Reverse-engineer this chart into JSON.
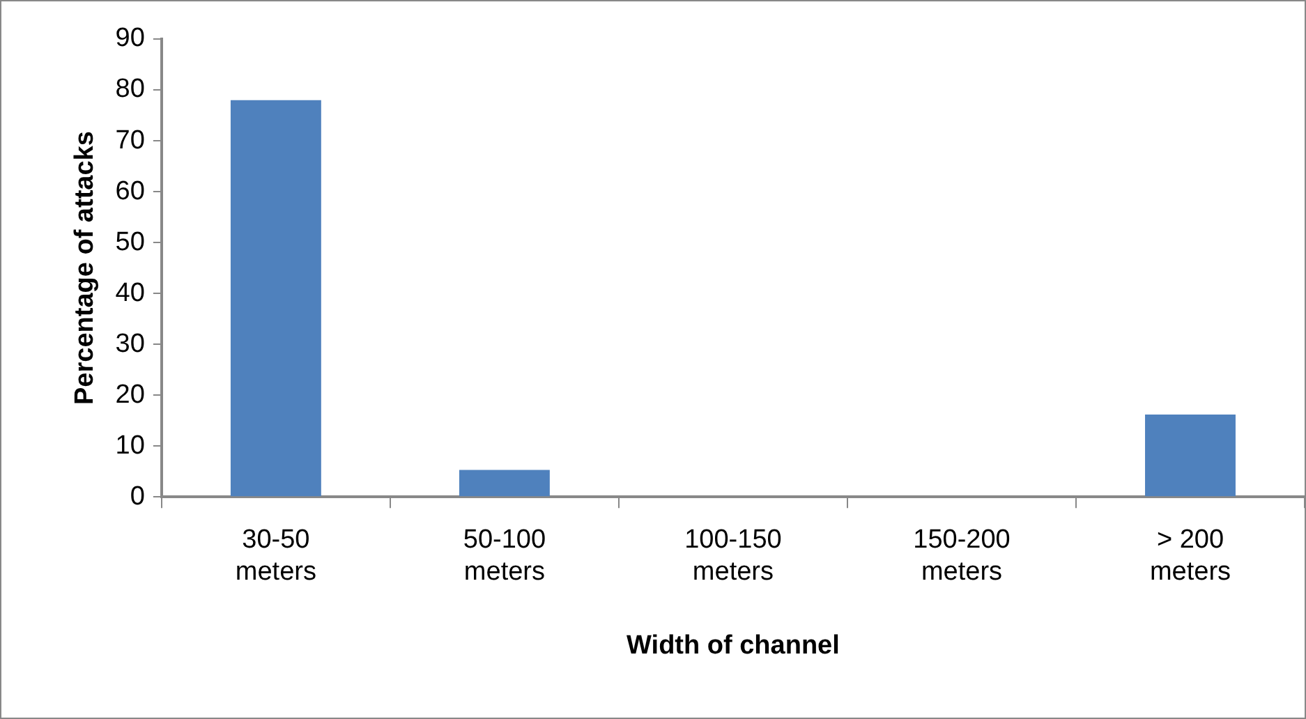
{
  "chart_data": {
    "type": "bar",
    "xlabel": "Width of channel",
    "ylabel": "Percentage of attacks",
    "categories": [
      "30-50 meters",
      "50-100 meters",
      "100-150 meters",
      "150-200 meters",
      "> 200 meters"
    ],
    "values": [
      78,
      5.3,
      0,
      0,
      16.2
    ],
    "color": "#4f81bd",
    "ylim": [
      0,
      90
    ],
    "yticks": [
      0,
      10,
      20,
      30,
      40,
      50,
      60,
      70,
      80,
      90
    ],
    "grid": false,
    "legend": false
  }
}
